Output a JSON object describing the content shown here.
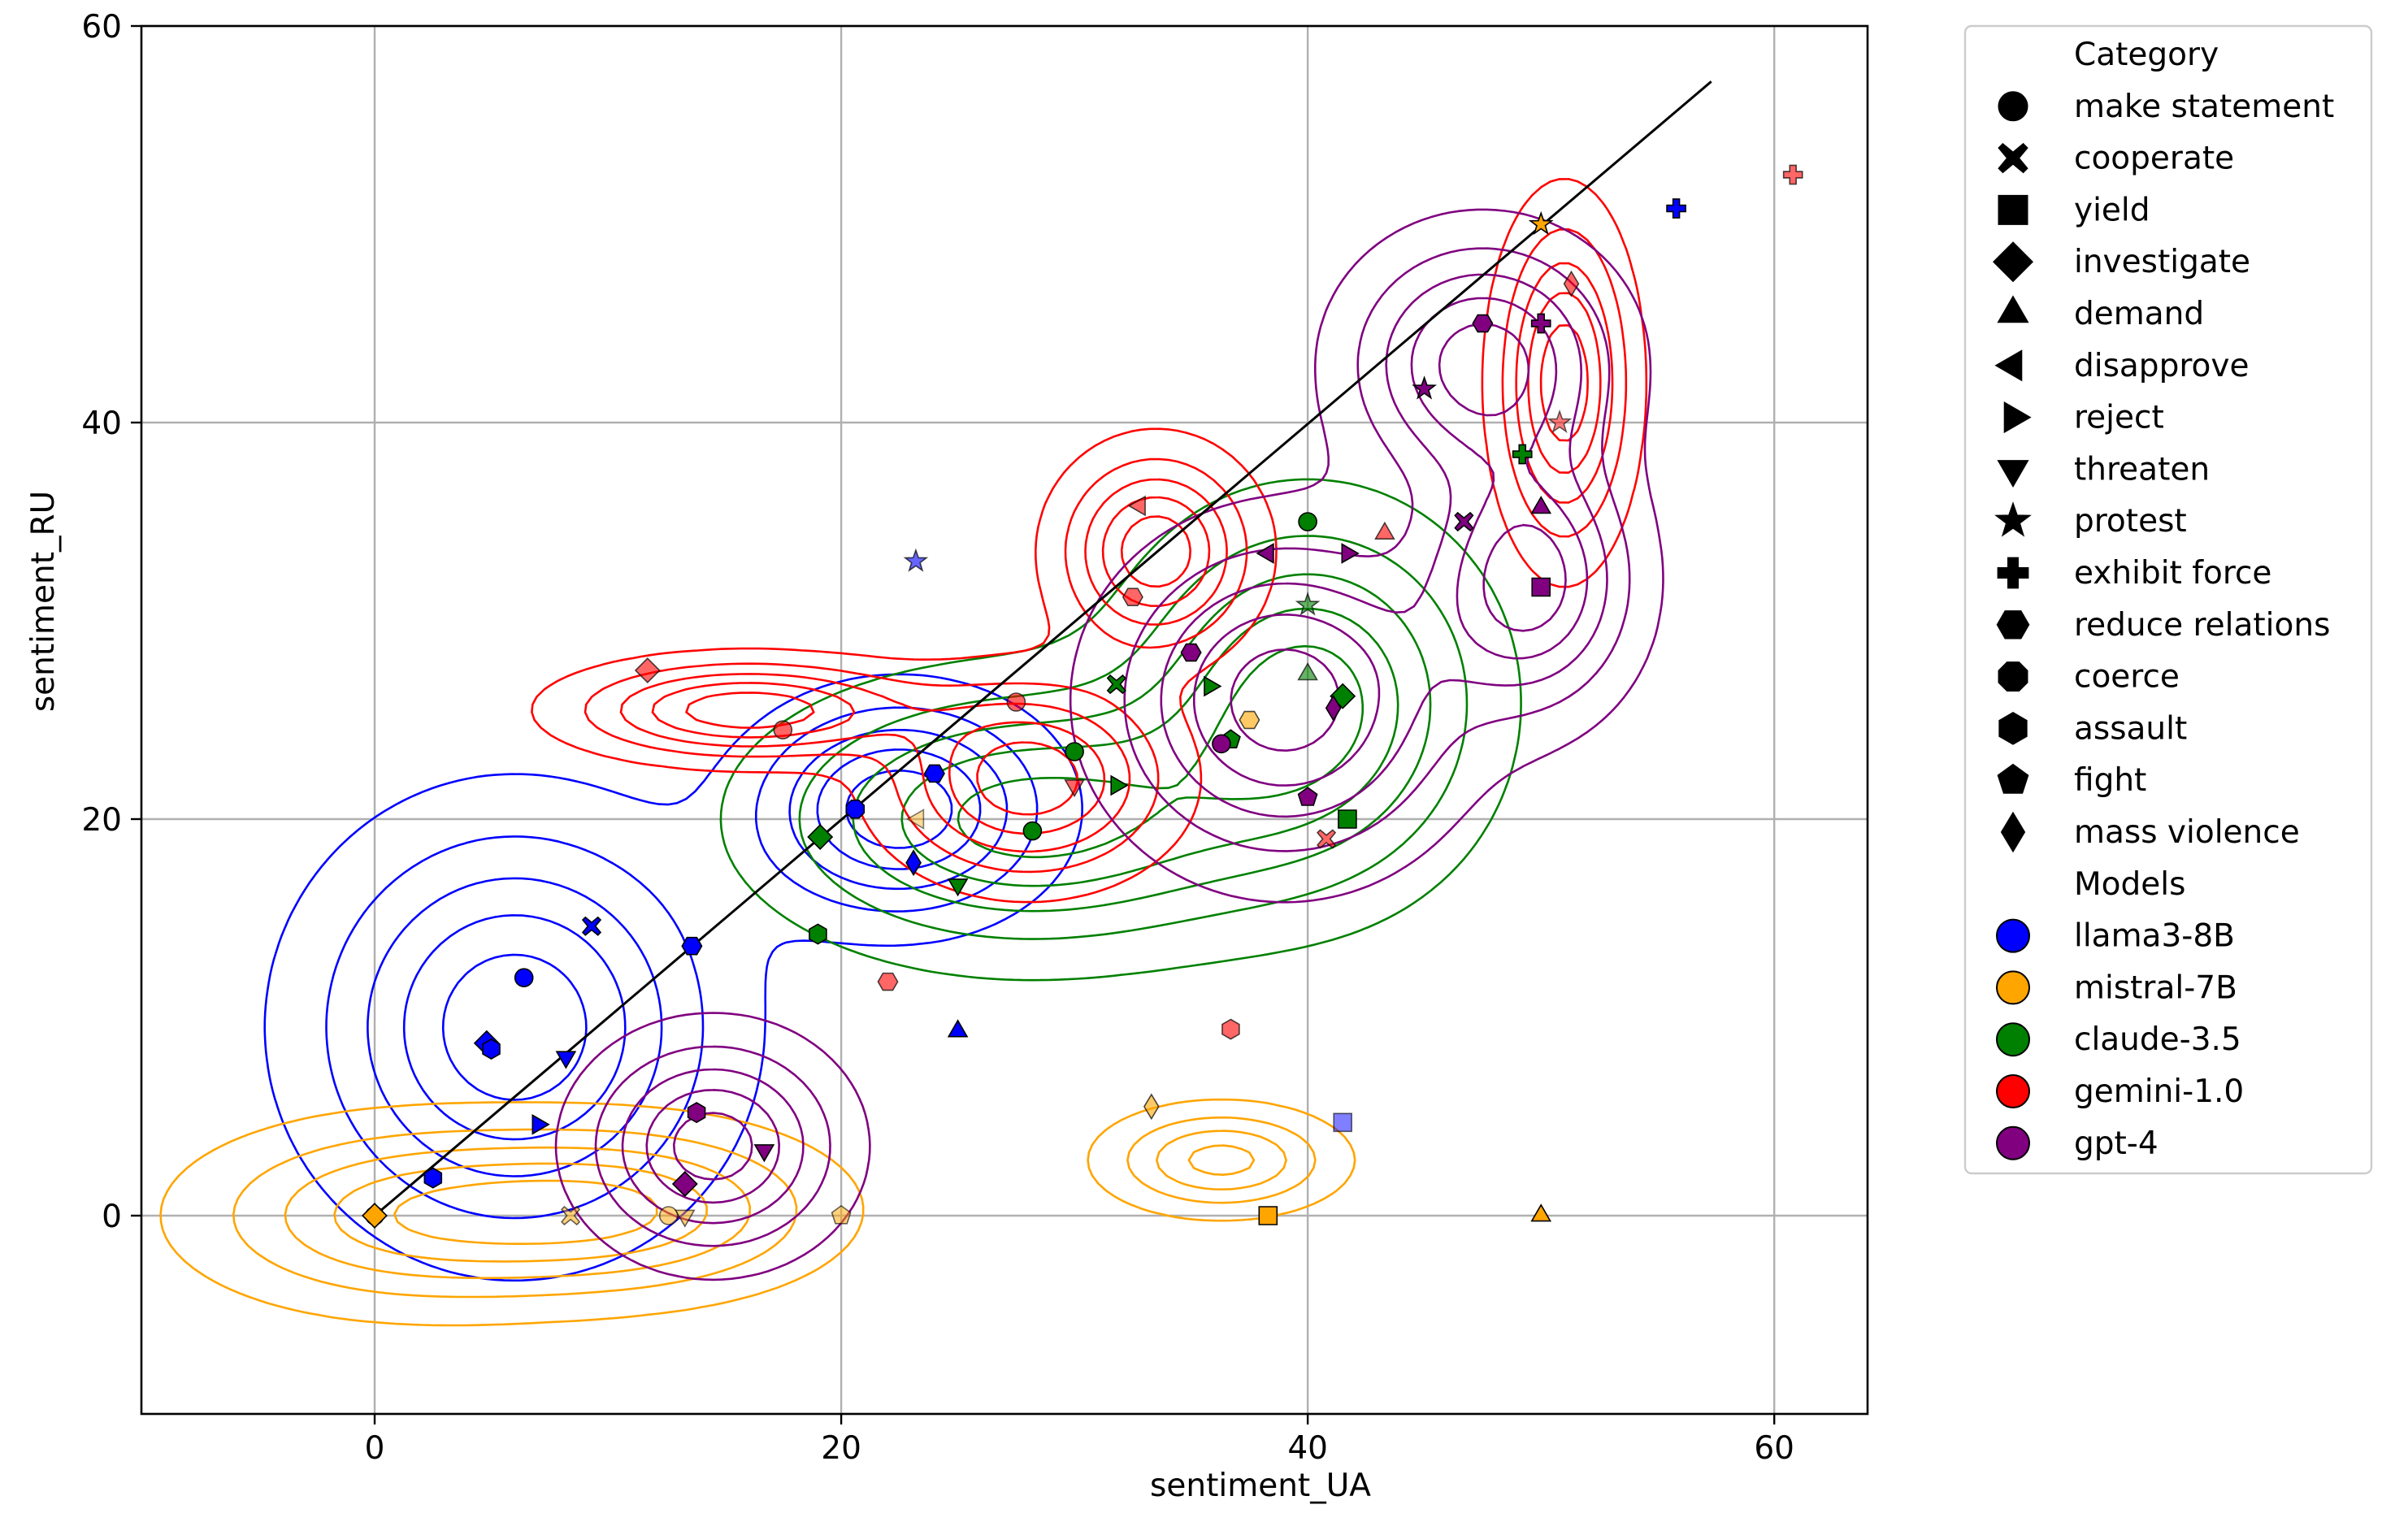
{
  "chart_data": {
    "type": "scatter",
    "title": "",
    "xlabel": "sentiment_UA",
    "ylabel": "sentiment_RU",
    "xlim": [
      -10,
      64
    ],
    "ylim": [
      -10,
      60
    ],
    "x_ticks": [
      0,
      20,
      40,
      60
    ],
    "y_ticks": [
      0,
      20,
      40,
      60
    ],
    "grid": true,
    "reference_line": {
      "from": [
        0,
        0
      ],
      "to": [
        57.3,
        57.2
      ],
      "color": "#000000"
    },
    "legend": {
      "placement": "outside-right",
      "category_title": "Category",
      "categories": [
        {
          "name": "make statement",
          "marker": "circle"
        },
        {
          "name": "cooperate",
          "marker": "x"
        },
        {
          "name": "yield",
          "marker": "square"
        },
        {
          "name": "investigate",
          "marker": "diamond"
        },
        {
          "name": "demand",
          "marker": "triangle-up"
        },
        {
          "name": "disapprove",
          "marker": "triangle-left"
        },
        {
          "name": "reject",
          "marker": "triangle-right"
        },
        {
          "name": "threaten",
          "marker": "triangle-down"
        },
        {
          "name": "protest",
          "marker": "star"
        },
        {
          "name": "exhibit force",
          "marker": "plus"
        },
        {
          "name": "reduce relations",
          "marker": "hexagon-flat"
        },
        {
          "name": "coerce",
          "marker": "octagon"
        },
        {
          "name": "assault",
          "marker": "hexagon"
        },
        {
          "name": "fight",
          "marker": "pentagon"
        },
        {
          "name": "mass violence",
          "marker": "thin-diamond"
        }
      ],
      "model_title": "Models",
      "models": [
        {
          "name": "llama3-8B",
          "color": "#0000ff"
        },
        {
          "name": "mistral-7B",
          "color": "#ffa500"
        },
        {
          "name": "claude-3.5",
          "color": "#008000"
        },
        {
          "name": "gemini-1.0",
          "color": "#ff0000"
        },
        {
          "name": "gpt-4",
          "color": "#800080"
        }
      ]
    },
    "density_contours": [
      {
        "model": "llama3-8B",
        "color": "#0000ff",
        "peaks": [
          {
            "cx": 6,
            "cy": 9.5,
            "sx": 5.2,
            "sy": 6.2
          },
          {
            "cx": 22.5,
            "cy": 20.5,
            "sx": 3.8,
            "sy": 3.3
          }
        ]
      },
      {
        "model": "mistral-7B",
        "color": "#ffa500",
        "peaks": [
          {
            "cx": 1.5,
            "cy": 0,
            "sx": 5.6,
            "sy": 2.8
          },
          {
            "cx": 11,
            "cy": 0.3,
            "sx": 5.2,
            "sy": 2.6
          },
          {
            "cx": 36.3,
            "cy": 2.8,
            "sx": 3.0,
            "sy": 1.6
          }
        ]
      },
      {
        "model": "claude-3.5",
        "color": "#008000",
        "peaks": [
          {
            "cx": 28,
            "cy": 20,
            "sx": 6.5,
            "sy": 4.0
          },
          {
            "cx": 40,
            "cy": 26,
            "sx": 4.5,
            "sy": 5.5
          }
        ]
      },
      {
        "model": "gemini-1.0",
        "color": "#ff0000",
        "peaks": [
          {
            "cx": 16,
            "cy": 25.5,
            "sx": 4.5,
            "sy": 1.5
          },
          {
            "cx": 28,
            "cy": 22,
            "sx": 3.6,
            "sy": 3.0
          },
          {
            "cx": 33.5,
            "cy": 33.5,
            "sx": 2.5,
            "sy": 3.0
          },
          {
            "cx": 51,
            "cy": 42,
            "sx": 1.7,
            "sy": 5.0
          }
        ]
      },
      {
        "model": "gpt-4",
        "color": "#800080",
        "peaks": [
          {
            "cx": 14.5,
            "cy": 3.5,
            "sx": 3.3,
            "sy": 3.3
          },
          {
            "cx": 39,
            "cy": 26,
            "sx": 4.5,
            "sy": 5.0
          },
          {
            "cx": 47.5,
            "cy": 43,
            "sx": 3.5,
            "sy": 3.8
          },
          {
            "cx": 49.5,
            "cy": 32,
            "sx": 2.8,
            "sy": 4.0
          }
        ]
      }
    ],
    "points": [
      {
        "model": "llama3-8B",
        "category": "make statement",
        "x": 6.4,
        "y": 12,
        "alpha": 1
      },
      {
        "model": "llama3-8B",
        "category": "cooperate",
        "x": 9.3,
        "y": 14.6,
        "alpha": 1
      },
      {
        "model": "llama3-8B",
        "category": "investigate",
        "x": 4.8,
        "y": 8.7,
        "alpha": 1
      },
      {
        "model": "llama3-8B",
        "category": "threaten",
        "x": 8.2,
        "y": 8.0,
        "alpha": 1
      },
      {
        "model": "llama3-8B",
        "category": "reject",
        "x": 7.0,
        "y": 4.6,
        "alpha": 1
      },
      {
        "model": "llama3-8B",
        "category": "reduce relations",
        "x": 13.6,
        "y": 13.6,
        "alpha": 1
      },
      {
        "model": "llama3-8B",
        "category": "assault",
        "x": 2.5,
        "y": 1.9,
        "alpha": 1
      },
      {
        "model": "llama3-8B",
        "category": "coerce",
        "x": 20.6,
        "y": 20.5,
        "alpha": 1
      },
      {
        "model": "llama3-8B",
        "category": "reduce relations",
        "x": 24.0,
        "y": 22.3,
        "alpha": 1
      },
      {
        "model": "llama3-8B",
        "category": "mass violence",
        "x": 23.1,
        "y": 17.8,
        "alpha": 1
      },
      {
        "model": "llama3-8B",
        "category": "demand",
        "x": 25.0,
        "y": 9.3,
        "alpha": 1
      },
      {
        "model": "llama3-8B",
        "category": "protest",
        "x": 23.2,
        "y": 33.0,
        "alpha": 0.6
      },
      {
        "model": "llama3-8B",
        "category": "yield",
        "x": 41.5,
        "y": 4.7,
        "alpha": 0.5
      },
      {
        "model": "llama3-8B",
        "category": "exhibit force",
        "x": 55.8,
        "y": 50.8,
        "alpha": 1
      },
      {
        "model": "llama3-8B",
        "category": "assault",
        "x": 5.0,
        "y": 8.4,
        "alpha": 1
      },
      {
        "model": "mistral-7B",
        "category": "make statement",
        "x": 0,
        "y": 0,
        "alpha": 1
      },
      {
        "model": "mistral-7B",
        "category": "investigate",
        "x": 0,
        "y": 0,
        "alpha": 1
      },
      {
        "model": "mistral-7B",
        "category": "cooperate",
        "x": 8.4,
        "y": 0,
        "alpha": 0.5
      },
      {
        "model": "mistral-7B",
        "category": "make statement",
        "x": 12.6,
        "y": 0,
        "alpha": 0.5
      },
      {
        "model": "mistral-7B",
        "category": "threaten",
        "x": 13.3,
        "y": 0,
        "alpha": 0.5
      },
      {
        "model": "mistral-7B",
        "category": "fight",
        "x": 20.0,
        "y": 0,
        "alpha": 0.5
      },
      {
        "model": "mistral-7B",
        "category": "mass violence",
        "x": 33.3,
        "y": 5.5,
        "alpha": 0.6
      },
      {
        "model": "mistral-7B",
        "category": "yield",
        "x": 38.3,
        "y": 0,
        "alpha": 1
      },
      {
        "model": "mistral-7B",
        "category": "demand",
        "x": 50.0,
        "y": 0,
        "alpha": 1
      },
      {
        "model": "mistral-7B",
        "category": "reduce relations",
        "x": 37.5,
        "y": 25.0,
        "alpha": 0.6
      },
      {
        "model": "mistral-7B",
        "category": "protest",
        "x": 50.0,
        "y": 50.0,
        "alpha": 1
      },
      {
        "model": "mistral-7B",
        "category": "disapprove",
        "x": 23.3,
        "y": 20.0,
        "alpha": 0.4
      },
      {
        "model": "claude-3.5",
        "category": "investigate",
        "x": 19.1,
        "y": 19.1,
        "alpha": 1
      },
      {
        "model": "claude-3.5",
        "category": "assault",
        "x": 19.0,
        "y": 14.2,
        "alpha": 1
      },
      {
        "model": "claude-3.5",
        "category": "threaten",
        "x": 25.0,
        "y": 16.7,
        "alpha": 1
      },
      {
        "model": "claude-3.5",
        "category": "make statement",
        "x": 28.2,
        "y": 19.4,
        "alpha": 1
      },
      {
        "model": "claude-3.5",
        "category": "make statement",
        "x": 30.0,
        "y": 23.4,
        "alpha": 1
      },
      {
        "model": "claude-3.5",
        "category": "cooperate",
        "x": 31.8,
        "y": 26.8,
        "alpha": 1
      },
      {
        "model": "claude-3.5",
        "category": "reject",
        "x": 31.8,
        "y": 21.7,
        "alpha": 1
      },
      {
        "model": "claude-3.5",
        "category": "reject",
        "x": 35.8,
        "y": 26.7,
        "alpha": 1
      },
      {
        "model": "claude-3.5",
        "category": "make statement",
        "x": 40.0,
        "y": 35.0,
        "alpha": 1
      },
      {
        "model": "claude-3.5",
        "category": "demand",
        "x": 40.0,
        "y": 27.3,
        "alpha": 0.6
      },
      {
        "model": "claude-3.5",
        "category": "protest",
        "x": 40.0,
        "y": 30.8,
        "alpha": 0.6
      },
      {
        "model": "claude-3.5",
        "category": "investigate",
        "x": 41.5,
        "y": 26.2,
        "alpha": 1
      },
      {
        "model": "claude-3.5",
        "category": "yield",
        "x": 41.7,
        "y": 20.0,
        "alpha": 1
      },
      {
        "model": "claude-3.5",
        "category": "exhibit force",
        "x": 49.2,
        "y": 38.4,
        "alpha": 1
      },
      {
        "model": "claude-3.5",
        "category": "fight",
        "x": 36.7,
        "y": 24.0,
        "alpha": 1
      },
      {
        "model": "gemini-1.0",
        "category": "investigate",
        "x": 11.7,
        "y": 27.5,
        "alpha": 0.6
      },
      {
        "model": "gemini-1.0",
        "category": "make statement",
        "x": 17.5,
        "y": 24.5,
        "alpha": 0.6
      },
      {
        "model": "gemini-1.0",
        "category": "reduce relations",
        "x": 22.0,
        "y": 11.8,
        "alpha": 0.6
      },
      {
        "model": "gemini-1.0",
        "category": "make statement",
        "x": 27.5,
        "y": 25.9,
        "alpha": 0.6
      },
      {
        "model": "gemini-1.0",
        "category": "threaten",
        "x": 30.0,
        "y": 21.7,
        "alpha": 0.6
      },
      {
        "model": "gemini-1.0",
        "category": "disapprove",
        "x": 32.8,
        "y": 35.8,
        "alpha": 0.6
      },
      {
        "model": "gemini-1.0",
        "category": "reduce relations",
        "x": 32.5,
        "y": 31.2,
        "alpha": 0.6
      },
      {
        "model": "gemini-1.0",
        "category": "assault",
        "x": 36.7,
        "y": 9.4,
        "alpha": 0.6
      },
      {
        "model": "gemini-1.0",
        "category": "cooperate",
        "x": 40.8,
        "y": 19.0,
        "alpha": 0.6
      },
      {
        "model": "gemini-1.0",
        "category": "demand",
        "x": 43.3,
        "y": 34.4,
        "alpha": 0.6
      },
      {
        "model": "gemini-1.0",
        "category": "mass violence",
        "x": 51.3,
        "y": 47.0,
        "alpha": 0.6
      },
      {
        "model": "gemini-1.0",
        "category": "protest",
        "x": 50.8,
        "y": 40.0,
        "alpha": 0.5
      },
      {
        "model": "gemini-1.0",
        "category": "exhibit force",
        "x": 60.8,
        "y": 52.5,
        "alpha": 0.6
      },
      {
        "model": "gpt-4",
        "category": "assault",
        "x": 13.8,
        "y": 5.2,
        "alpha": 1
      },
      {
        "model": "gpt-4",
        "category": "investigate",
        "x": 13.3,
        "y": 1.6,
        "alpha": 1
      },
      {
        "model": "gpt-4",
        "category": "threaten",
        "x": 16.7,
        "y": 3.3,
        "alpha": 1
      },
      {
        "model": "gpt-4",
        "category": "reduce relations",
        "x": 35.0,
        "y": 28.4,
        "alpha": 1
      },
      {
        "model": "gpt-4",
        "category": "make statement",
        "x": 36.3,
        "y": 23.8,
        "alpha": 1
      },
      {
        "model": "gpt-4",
        "category": "disapprove",
        "x": 38.3,
        "y": 33.4,
        "alpha": 1
      },
      {
        "model": "gpt-4",
        "category": "fight",
        "x": 40.0,
        "y": 21.1,
        "alpha": 1
      },
      {
        "model": "gpt-4",
        "category": "mass violence",
        "x": 41.1,
        "y": 25.6,
        "alpha": 1
      },
      {
        "model": "gpt-4",
        "category": "reject",
        "x": 41.7,
        "y": 33.4,
        "alpha": 1
      },
      {
        "model": "gpt-4",
        "category": "protest",
        "x": 45.0,
        "y": 41.7,
        "alpha": 1
      },
      {
        "model": "gpt-4",
        "category": "cooperate",
        "x": 46.7,
        "y": 35.0,
        "alpha": 1
      },
      {
        "model": "gpt-4",
        "category": "reduce relations",
        "x": 47.5,
        "y": 45.0,
        "alpha": 1
      },
      {
        "model": "gpt-4",
        "category": "exhibit force",
        "x": 50.0,
        "y": 45.0,
        "alpha": 1
      },
      {
        "model": "gpt-4",
        "category": "demand",
        "x": 50.0,
        "y": 35.7,
        "alpha": 1
      },
      {
        "model": "gpt-4",
        "category": "yield",
        "x": 50.0,
        "y": 31.7,
        "alpha": 1
      }
    ]
  }
}
